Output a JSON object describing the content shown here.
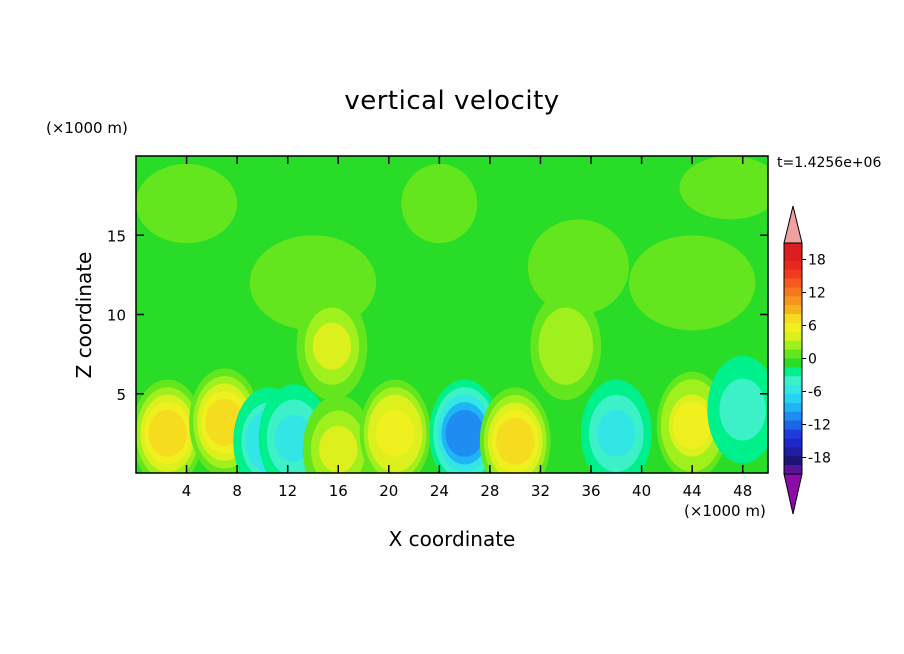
{
  "chart_data": {
    "type": "heatmap",
    "title": "vertical velocity",
    "xlabel": "X coordinate",
    "ylabel": "Z coordinate",
    "x_unit_label": "(×1000 m)",
    "y_unit_label": "(×1000 m)",
    "time_label": "t=1.4256e+06",
    "xlim": [
      0,
      50
    ],
    "ylim": [
      0,
      20
    ],
    "x_ticks": [
      4,
      8,
      12,
      16,
      20,
      24,
      28,
      32,
      36,
      40,
      44,
      48
    ],
    "y_ticks": [
      5,
      10,
      15
    ],
    "colorbar": {
      "levels": [
        -21,
        -19.5,
        -18,
        -16.5,
        -15,
        -13.5,
        -12,
        -10.5,
        -9,
        -7.5,
        -6,
        -4.5,
        -3,
        -1.5,
        0,
        1.5,
        3,
        4.5,
        6,
        7.5,
        9,
        10.5,
        12,
        13.5,
        15,
        16.5,
        18,
        19.5,
        21
      ],
      "tick_labels": [
        "18",
        "12",
        "6",
        "0",
        "-6",
        "-12",
        "-18"
      ],
      "tick_values": [
        18,
        12,
        6,
        0,
        -6,
        -12,
        -18
      ],
      "colors": [
        "#8c0aa8",
        "#5a1496",
        "#1e1478",
        "#1e1ea0",
        "#1e28c8",
        "#1e3cdc",
        "#1e64e6",
        "#1e8cf0",
        "#1eb4f5",
        "#28d2f5",
        "#32e6e6",
        "#3cf0c8",
        "#00f08c",
        "#28dc28",
        "#64e61e",
        "#a0f01e",
        "#dcf01e",
        "#f0f01e",
        "#f5dc1e",
        "#f5b41e",
        "#f5961e",
        "#f5781e",
        "#f55a1e",
        "#f03c1e",
        "#e6281e",
        "#dc1e1e",
        "#f0a0a0"
      ],
      "over_color": "#f0a0a0",
      "under_color": "#8c0aa8"
    },
    "cells": [
      {
        "x": 2.5,
        "z": 2.5,
        "value": 7.5
      },
      {
        "x": 7,
        "z": 3.2,
        "value": 9
      },
      {
        "x": 10.5,
        "z": 2,
        "value": -7
      },
      {
        "x": 12.5,
        "z": 2.2,
        "value": -6
      },
      {
        "x": 16,
        "z": 1.5,
        "value": 4
      },
      {
        "x": 20.5,
        "z": 2.5,
        "value": 7
      },
      {
        "x": 26,
        "z": 2.5,
        "value": -12
      },
      {
        "x": 30,
        "z": 2,
        "value": 7.5
      },
      {
        "x": 38,
        "z": 2.5,
        "value": -6
      },
      {
        "x": 44,
        "z": 3,
        "value": 6
      },
      {
        "x": 48,
        "z": 4,
        "value": -4
      },
      {
        "x": 15.5,
        "z": 8,
        "value": 4
      },
      {
        "x": 34,
        "z": 8,
        "value": 3
      }
    ]
  }
}
